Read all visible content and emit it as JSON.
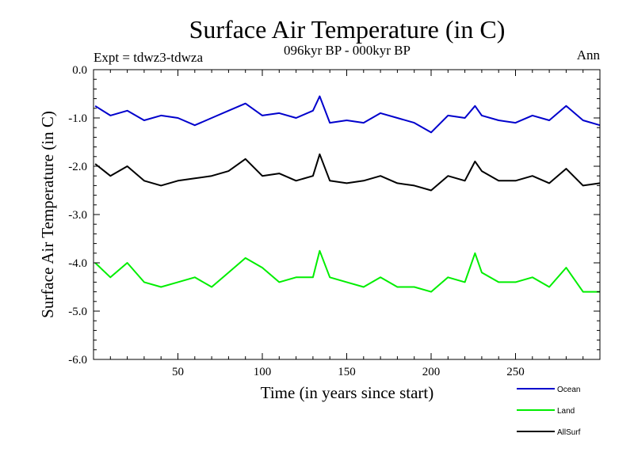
{
  "chart_data": {
    "type": "line",
    "title": "Surface Air Temperature (in C)",
    "subtitle": "096kyr BP - 000kyr BP",
    "experiment_label": "Expt = tdwz3-tdwza",
    "season_label": "Ann",
    "xlabel": "Time (in years since start)",
    "ylabel": "Surface Air Temperature (in C)",
    "xlim": [
      0,
      300
    ],
    "ylim": [
      -6.0,
      0.0
    ],
    "x_ticks": [
      50,
      100,
      150,
      200,
      250
    ],
    "x_tick_labels": [
      "50",
      "100",
      "150",
      "200",
      "250"
    ],
    "y_ticks": [
      0.0,
      -1.0,
      -2.0,
      -3.0,
      -4.0,
      -5.0,
      -6.0
    ],
    "y_tick_labels": [
      "0.0",
      "-1.0",
      "-2.0",
      "-3.0",
      "-4.0",
      "-5.0",
      "-6.0"
    ],
    "x": [
      1,
      10,
      20,
      30,
      40,
      50,
      60,
      70,
      80,
      90,
      100,
      110,
      120,
      130,
      134,
      140,
      150,
      160,
      170,
      180,
      190,
      200,
      210,
      220,
      226,
      230,
      240,
      250,
      260,
      270,
      280,
      290,
      300
    ],
    "series": [
      {
        "name": "Ocean",
        "color": "#0000cc",
        "values": [
          -0.75,
          -0.95,
          -0.85,
          -1.05,
          -0.95,
          -1.0,
          -1.15,
          -1.0,
          -0.85,
          -0.7,
          -0.95,
          -0.9,
          -1.0,
          -0.85,
          -0.55,
          -1.1,
          -1.05,
          -1.1,
          -0.9,
          -1.0,
          -1.1,
          -1.3,
          -0.95,
          -1.0,
          -0.75,
          -0.95,
          -1.05,
          -1.1,
          -0.95,
          -1.05,
          -0.75,
          -1.05,
          -1.15
        ]
      },
      {
        "name": "Land",
        "color": "#00ee00",
        "values": [
          -4.0,
          -4.3,
          -4.0,
          -4.4,
          -4.5,
          -4.4,
          -4.3,
          -4.5,
          -4.2,
          -3.9,
          -4.1,
          -4.4,
          -4.3,
          -4.3,
          -3.75,
          -4.3,
          -4.4,
          -4.5,
          -4.3,
          -4.5,
          -4.5,
          -4.6,
          -4.3,
          -4.4,
          -3.8,
          -4.2,
          -4.4,
          -4.4,
          -4.3,
          -4.5,
          -4.1,
          -4.6,
          -4.6
        ]
      },
      {
        "name": "AllSurf",
        "color": "#000000",
        "values": [
          -1.95,
          -2.2,
          -2.0,
          -2.3,
          -2.4,
          -2.3,
          -2.25,
          -2.2,
          -2.1,
          -1.85,
          -2.2,
          -2.15,
          -2.3,
          -2.2,
          -1.75,
          -2.3,
          -2.35,
          -2.3,
          -2.2,
          -2.35,
          -2.4,
          -2.5,
          -2.2,
          -2.3,
          -1.9,
          -2.1,
          -2.3,
          -2.3,
          -2.2,
          -2.35,
          -2.05,
          -2.4,
          -2.35
        ]
      }
    ],
    "legend": [
      {
        "label": "Ocean",
        "color": "#0000cc"
      },
      {
        "label": "Land",
        "color": "#00ee00"
      },
      {
        "label": "AllSurf",
        "color": "#000000"
      }
    ],
    "legend_position": "bottom-right",
    "grid": false
  }
}
